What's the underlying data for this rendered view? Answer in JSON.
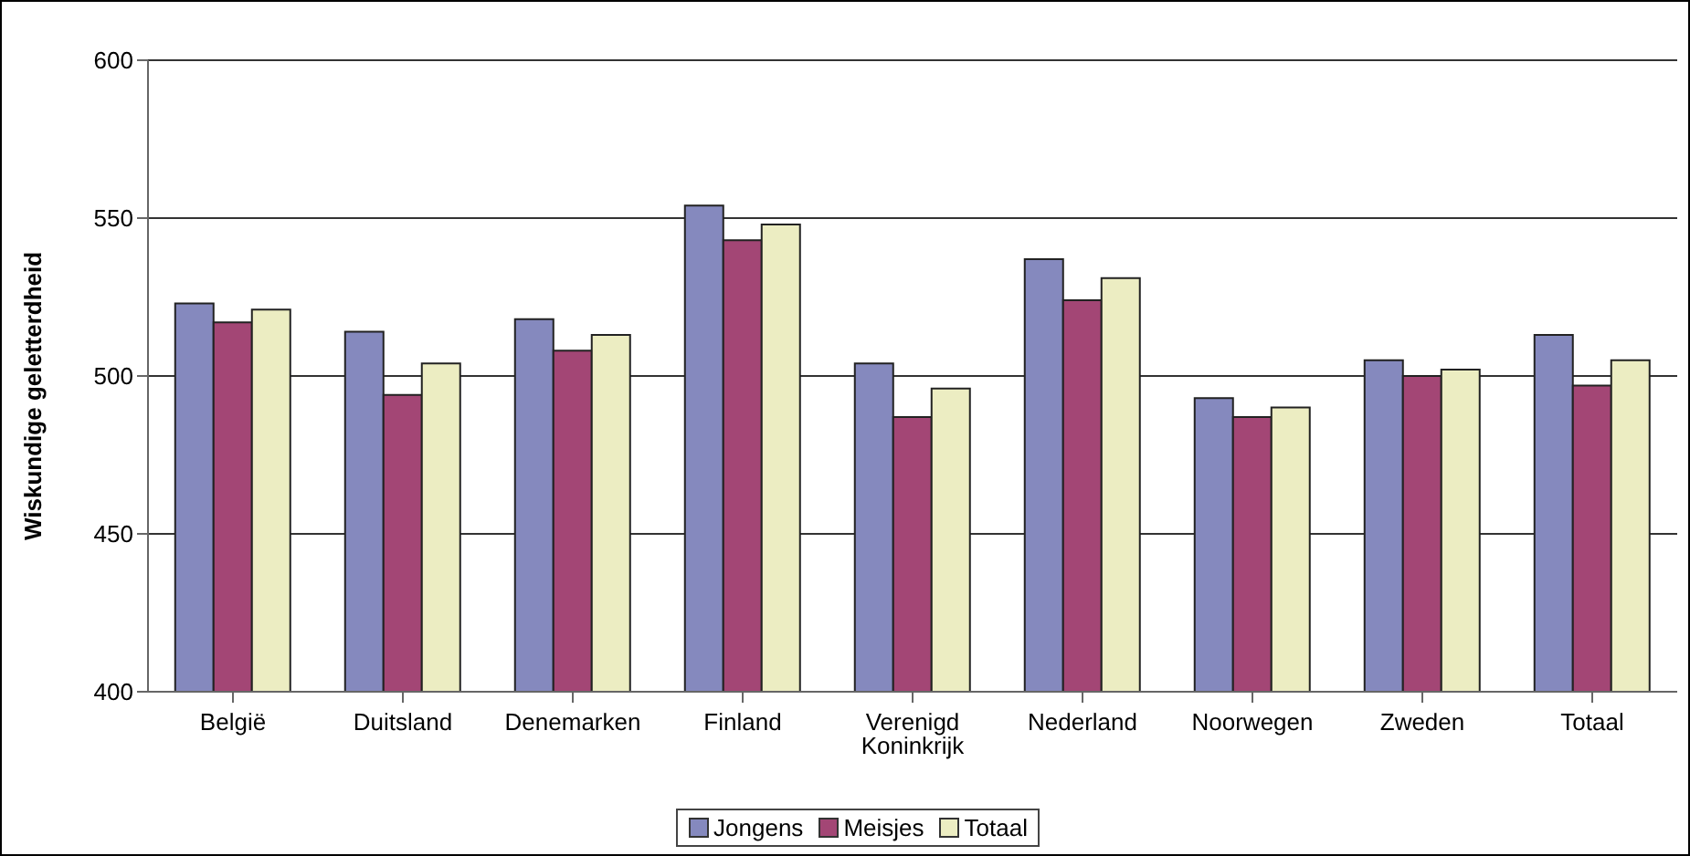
{
  "chart_data": {
    "type": "bar",
    "ylabel": "Wiskundige geletterdheid",
    "categories": [
      "België",
      "Duitsland",
      "Denemarken",
      "Finland",
      "Verenigd Koninkrijk",
      "Nederland",
      "Noorwegen",
      "Zweden",
      "Totaal"
    ],
    "series": [
      {
        "name": "Jongens",
        "color": "#8589be",
        "values": [
          523,
          514,
          518,
          554,
          504,
          537,
          493,
          505,
          513
        ]
      },
      {
        "name": "Meisjes",
        "color": "#a34675",
        "values": [
          517,
          494,
          508,
          543,
          487,
          524,
          487,
          500,
          497
        ]
      },
      {
        "name": "Totaal",
        "color": "#ecedc2",
        "values": [
          521,
          504,
          513,
          548,
          496,
          531,
          490,
          502,
          505
        ]
      }
    ],
    "ylim": [
      400,
      600
    ],
    "yticks": [
      400,
      450,
      500,
      550,
      600
    ],
    "grid": "y",
    "legend": "bottom"
  }
}
